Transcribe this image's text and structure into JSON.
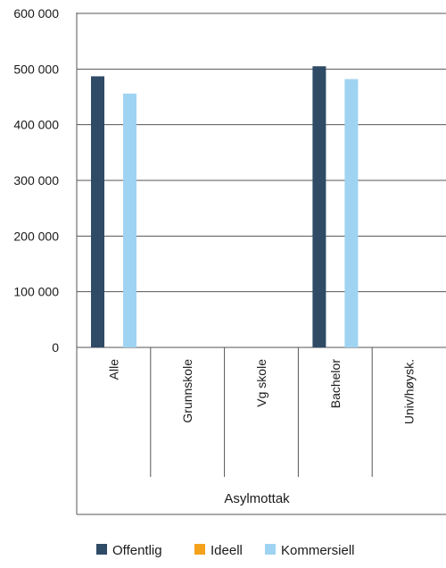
{
  "chart_data": {
    "type": "bar",
    "title": "",
    "xlabel": "",
    "ylabel": "",
    "ylim": [
      0,
      600000
    ],
    "yticks": [
      0,
      100000,
      200000,
      300000,
      400000,
      500000,
      600000
    ],
    "ytick_labels": [
      "0",
      "100 000",
      "200 000",
      "300 000",
      "400 000",
      "500 000",
      "600 000"
    ],
    "grid": true,
    "legend_position": "bottom",
    "group_label": "Asylmottak",
    "categories": [
      "Alle",
      "Grunnskole",
      "Vg skole",
      "Bachelor",
      "Univ/høysk."
    ],
    "series": [
      {
        "name": "Offentlig",
        "color": "#2f4b66",
        "values": [
          487000,
          null,
          null,
          505000,
          null
        ]
      },
      {
        "name": "Ideell",
        "color": "#f5a11c",
        "values": [
          null,
          null,
          null,
          null,
          null
        ]
      },
      {
        "name": "Kommersiell",
        "color": "#9fd3f2",
        "values": [
          456000,
          null,
          null,
          482000,
          null
        ]
      }
    ]
  }
}
